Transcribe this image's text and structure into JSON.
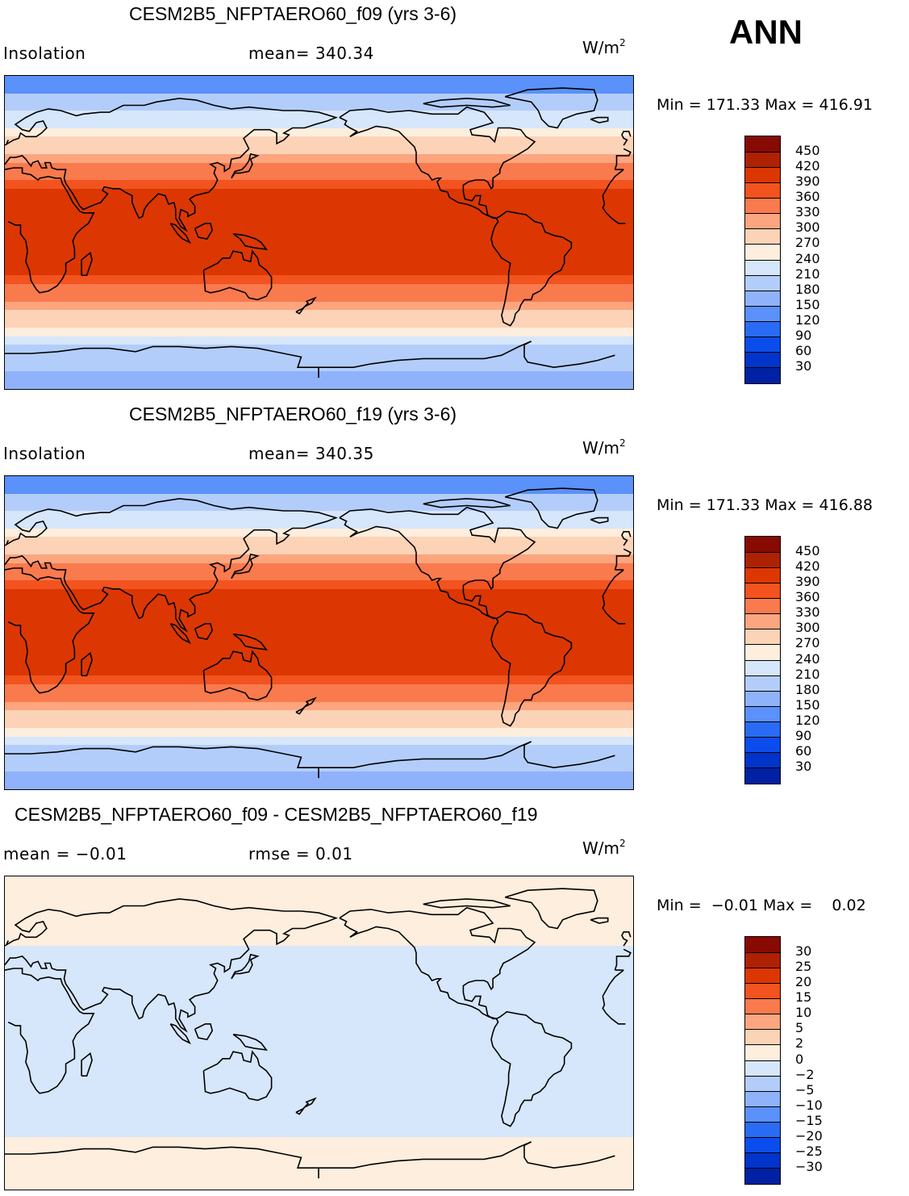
{
  "season": "ANN",
  "colors": [
    "#00007f",
    "#0021a3",
    "#0034cb",
    "#0b4dec",
    "#2a6bf5",
    "#5a91fa",
    "#8fb2fa",
    "#b3cdfb",
    "#d6e6fb",
    "#fdeedd",
    "#fcd3b7",
    "#fca57f",
    "#f97a4d",
    "#f2531f",
    "#dc3702",
    "#ae2102",
    "#870a03"
  ],
  "chart_data": [
    {
      "type": "heatmap",
      "title": "CESM2B5_NFPTAERO60_f09 (yrs 3-6)",
      "variable": "Insolation",
      "mean_label": "mean= 340.34",
      "units": "W/m",
      "units_exp": "2",
      "min_max": "Min = 171.33 Max = 416.91",
      "min": 171.33,
      "max": 416.91,
      "mean": 340.34,
      "colorbar_levels": [
        "450",
        "420",
        "390",
        "360",
        "330",
        "300",
        "270",
        "240",
        "210",
        "180",
        "150",
        "120",
        "90",
        "60",
        "30"
      ],
      "lat_bands": [
        {
          "lat": [
            80,
            90
          ],
          "color_index": 5
        },
        {
          "lat": [
            70,
            80
          ],
          "color_index": 7
        },
        {
          "lat": [
            60,
            70
          ],
          "color_index": 8
        },
        {
          "lat": [
            55,
            60
          ],
          "color_index": 9
        },
        {
          "lat": [
            45,
            55
          ],
          "color_index": 10
        },
        {
          "lat": [
            40,
            45
          ],
          "color_index": 11
        },
        {
          "lat": [
            30,
            40
          ],
          "color_index": 12
        },
        {
          "lat": [
            25,
            30
          ],
          "color_index": 13
        },
        {
          "lat": [
            -25,
            25
          ],
          "color_index": 14
        },
        {
          "lat": [
            -30,
            -25
          ],
          "color_index": 13
        },
        {
          "lat": [
            -40,
            -30
          ],
          "color_index": 12
        },
        {
          "lat": [
            -45,
            -40
          ],
          "color_index": 11
        },
        {
          "lat": [
            -55,
            -45
          ],
          "color_index": 10
        },
        {
          "lat": [
            -60,
            -55
          ],
          "color_index": 9
        },
        {
          "lat": [
            -65,
            -60
          ],
          "color_index": 8
        },
        {
          "lat": [
            -80,
            -65
          ],
          "color_index": 7
        },
        {
          "lat": [
            -90,
            -80
          ],
          "color_index": 6
        }
      ]
    },
    {
      "type": "heatmap",
      "title": "CESM2B5_NFPTAERO60_f19 (yrs 3-6)",
      "variable": "Insolation",
      "mean_label": "mean= 340.35",
      "units": "W/m",
      "units_exp": "2",
      "min_max": "Min = 171.33 Max = 416.88",
      "min": 171.33,
      "max": 416.88,
      "mean": 340.35,
      "colorbar_levels": [
        "450",
        "420",
        "390",
        "360",
        "330",
        "300",
        "270",
        "240",
        "210",
        "180",
        "150",
        "120",
        "90",
        "60",
        "30"
      ],
      "lat_bands": [
        {
          "lat": [
            80,
            90
          ],
          "color_index": 5
        },
        {
          "lat": [
            70,
            80
          ],
          "color_index": 7
        },
        {
          "lat": [
            60,
            70
          ],
          "color_index": 8
        },
        {
          "lat": [
            55,
            60
          ],
          "color_index": 9
        },
        {
          "lat": [
            45,
            55
          ],
          "color_index": 10
        },
        {
          "lat": [
            40,
            45
          ],
          "color_index": 11
        },
        {
          "lat": [
            30,
            40
          ],
          "color_index": 12
        },
        {
          "lat": [
            25,
            30
          ],
          "color_index": 13
        },
        {
          "lat": [
            -25,
            25
          ],
          "color_index": 14
        },
        {
          "lat": [
            -30,
            -25
          ],
          "color_index": 13
        },
        {
          "lat": [
            -40,
            -30
          ],
          "color_index": 12
        },
        {
          "lat": [
            -45,
            -40
          ],
          "color_index": 11
        },
        {
          "lat": [
            -55,
            -45
          ],
          "color_index": 10
        },
        {
          "lat": [
            -60,
            -55
          ],
          "color_index": 9
        },
        {
          "lat": [
            -65,
            -60
          ],
          "color_index": 8
        },
        {
          "lat": [
            -80,
            -65
          ],
          "color_index": 7
        },
        {
          "lat": [
            -90,
            -80
          ],
          "color_index": 6
        }
      ]
    },
    {
      "type": "heatmap",
      "title": "CESM2B5_NFPTAERO60_f09 - CESM2B5_NFPTAERO60_f19",
      "variable": "mean =  −0.01",
      "mean_label": "rmse =    0.01",
      "units": "W/m",
      "units_exp": "2",
      "min_max": "Min =  −0.01 Max =    0.02",
      "min": -0.01,
      "max": 0.02,
      "mean": -0.01,
      "rmse": 0.01,
      "colorbar_levels": [
        "30",
        "25",
        "20",
        "15",
        "10",
        "5",
        "2",
        "0",
        "−2",
        "−5",
        "−10",
        "−15",
        "−20",
        "−25",
        "−30"
      ],
      "lat_bands": [
        {
          "lat": [
            50,
            90
          ],
          "color_index": 9
        },
        {
          "lat": [
            -60,
            50
          ],
          "color_index": 8
        },
        {
          "lat": [
            -90,
            -60
          ],
          "color_index": 9
        }
      ]
    }
  ]
}
